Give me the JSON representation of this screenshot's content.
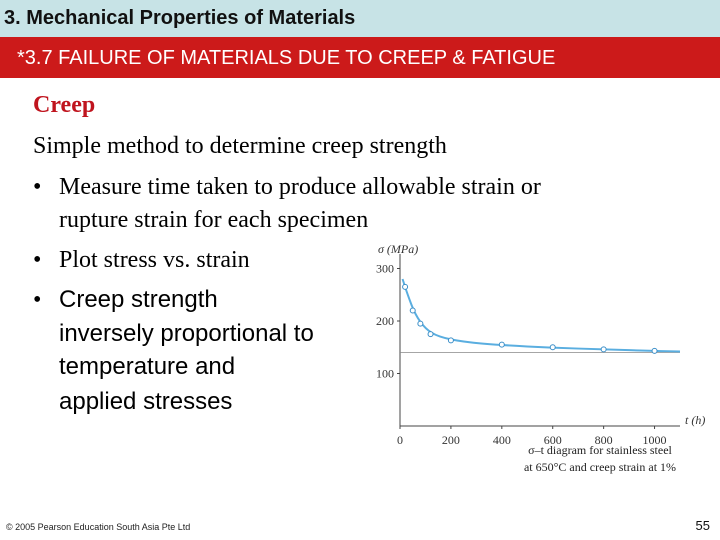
{
  "header": {
    "title": "3. Mechanical Properties of Materials",
    "subtitle": "*3.7 FAILURE OF MATERIALS DUE TO CREEP & FATIGUE"
  },
  "content": {
    "heading": "Creep",
    "intro": "Simple method to determine creep strength",
    "bullets": [
      {
        "lines": [
          "Measure time taken to produce allowable strain or",
          "rupture strain for each specimen"
        ]
      },
      {
        "lines": [
          "Plot stress vs. strain"
        ]
      },
      {
        "lines": [
          "Creep strength",
          "inversely proportional to",
          "temperature and",
          "applied stresses"
        ]
      }
    ]
  },
  "chart_data": {
    "type": "line",
    "ylabel": "σ (MPa)",
    "xlabel": "t (h)",
    "xlim": [
      0,
      1100
    ],
    "ylim": [
      0,
      320
    ],
    "x_ticks": [
      0,
      200,
      400,
      600,
      800,
      1000
    ],
    "y_ticks": [
      100,
      200,
      300
    ],
    "asymptote": 140,
    "series": [
      {
        "points": [
          [
            20,
            265
          ],
          [
            50,
            220
          ],
          [
            80,
            195
          ],
          [
            120,
            175
          ],
          [
            200,
            163
          ],
          [
            400,
            155
          ],
          [
            600,
            150
          ],
          [
            800,
            146
          ],
          [
            1000,
            143
          ]
        ],
        "curve": [
          [
            10,
            280
          ],
          [
            30,
            250
          ],
          [
            60,
            212
          ],
          [
            100,
            185
          ],
          [
            150,
            170
          ],
          [
            250,
            160
          ],
          [
            400,
            154
          ],
          [
            600,
            149
          ],
          [
            800,
            146
          ],
          [
            1000,
            143
          ],
          [
            1100,
            142
          ]
        ]
      }
    ],
    "caption_lines": [
      "σ–t diagram for stainless steel",
      "at 650°C and creep strain at 1%"
    ],
    "colors": {
      "curve": "#5aaee0",
      "marker": "#3c8fc8",
      "axis": "#444444"
    }
  },
  "footer": {
    "copyright": "© 2005 Pearson Education South Asia Pte Ltd",
    "page_number": "55"
  }
}
